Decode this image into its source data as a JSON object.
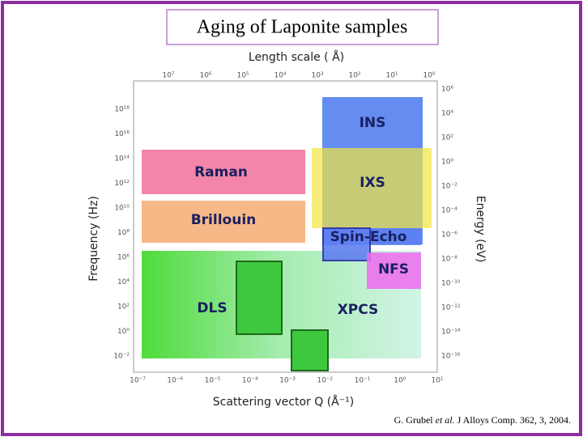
{
  "slide": {
    "title": "Aging of Laponite samples",
    "citation": {
      "authors": "G. Grubel",
      "etal": "et al.",
      "ref": "J Alloys Comp. 362, 3, 2004."
    }
  },
  "figure": {
    "top_axis_label": "Length scale ( Å)",
    "top_ticks": [
      "10⁷",
      "10⁶",
      "10⁵",
      "10⁴",
      "10³",
      "10²",
      "10¹",
      "10⁰"
    ],
    "left_axis_label": "Frequency (Hz)",
    "left_ticks": [
      "10¹⁸",
      "10¹⁶",
      "10¹⁴",
      "10¹²",
      "10¹⁰",
      "10⁸",
      "10⁶",
      "10⁴",
      "10²",
      "10⁰",
      "10⁻²"
    ],
    "right_axis_label": "Energy (eV)",
    "right_ticks": [
      "10⁶",
      "10⁴",
      "10²",
      "10⁰",
      "10⁻²",
      "10⁻⁴",
      "10⁻⁶",
      "10⁻⁸",
      "10⁻¹⁰",
      "10⁻¹²",
      "10⁻¹⁴",
      "10⁻¹⁶"
    ],
    "bottom_axis_label": "Scattering vector Q (Å⁻¹)",
    "bottom_ticks": [
      "10⁻⁷",
      "10⁻⁶",
      "10⁻⁵",
      "10⁻⁴",
      "10⁻³",
      "10⁻²",
      "10⁻¹",
      "10⁰",
      "10¹"
    ],
    "regions": [
      "INS",
      "IXS",
      "Raman",
      "Brillouin",
      "Spin-Echo",
      "NFS",
      "DLS",
      "XPCS"
    ]
  }
}
